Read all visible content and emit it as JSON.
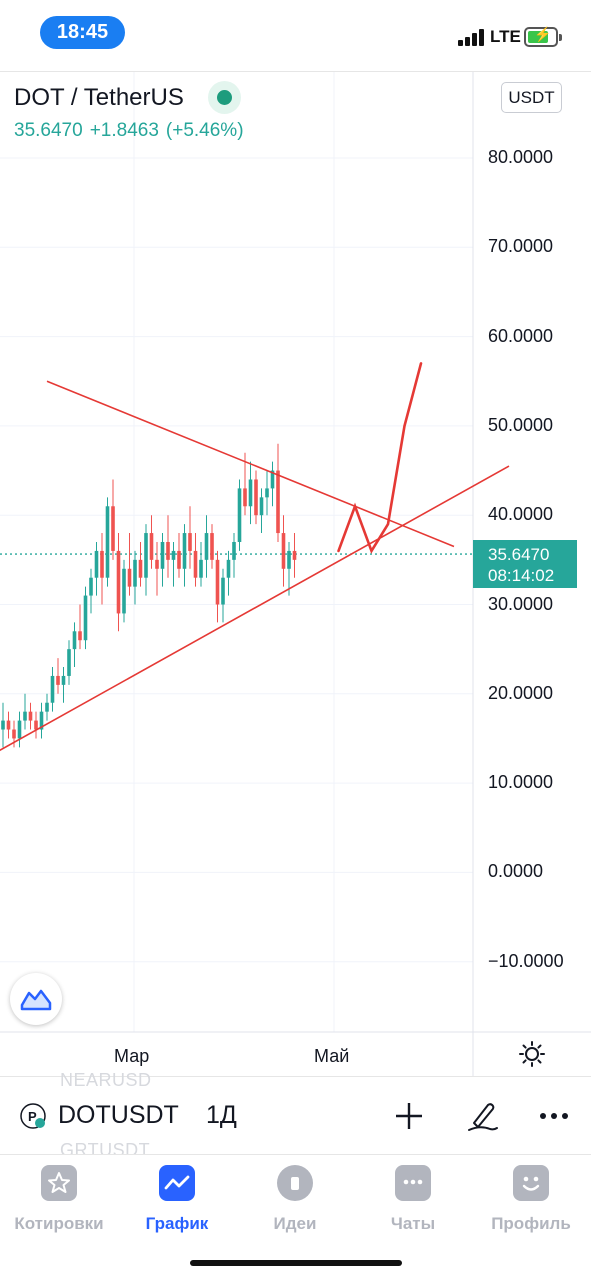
{
  "status_bar": {
    "time": "18:45",
    "network": "LTE",
    "icons": [
      "signal-icon",
      "battery-charging-icon"
    ]
  },
  "header": {
    "symbol_title": "DOT / TetherUS",
    "price": "35.6470",
    "change": "+1.8463",
    "change_percent": "(+5.46%)",
    "currency_button": "USDT",
    "status_indicator": "live-dot-icon"
  },
  "chart": {
    "price_axis_labels": [
      "80.0000",
      "70.0000",
      "60.0000",
      "50.0000",
      "40.0000",
      "30.0000",
      "20.0000",
      "10.0000",
      "0.0000",
      "−10.0000"
    ],
    "current_price_label": "35.6470",
    "countdown_label": "08:14:02",
    "time_axis_labels": [
      "Мар",
      "Май"
    ],
    "colors": {
      "up": "#26a69a",
      "down": "#ef5350",
      "drawing": "#e53935",
      "grid": "#f0f3fa"
    }
  },
  "chart_data": {
    "type": "candlestick",
    "ylim": [
      -14,
      86
    ],
    "current_price": 35.647,
    "candles": [
      [
        16,
        19,
        14,
        17
      ],
      [
        17,
        18,
        15,
        16
      ],
      [
        16,
        17,
        14,
        15
      ],
      [
        15,
        18,
        14,
        17
      ],
      [
        17,
        20,
        16,
        18
      ],
      [
        18,
        19,
        16,
        17
      ],
      [
        17,
        18,
        15,
        16
      ],
      [
        16,
        19,
        15,
        18
      ],
      [
        18,
        20,
        17,
        19
      ],
      [
        19,
        23,
        18,
        22
      ],
      [
        22,
        24,
        20,
        21
      ],
      [
        21,
        23,
        19,
        22
      ],
      [
        22,
        26,
        21,
        25
      ],
      [
        25,
        28,
        23,
        27
      ],
      [
        27,
        30,
        25,
        26
      ],
      [
        26,
        32,
        25,
        31
      ],
      [
        31,
        34,
        29,
        33
      ],
      [
        33,
        37,
        31,
        36
      ],
      [
        36,
        38,
        30,
        33
      ],
      [
        33,
        42,
        32,
        41
      ],
      [
        41,
        44,
        35,
        36
      ],
      [
        36,
        38,
        27,
        29
      ],
      [
        29,
        35,
        28,
        34
      ],
      [
        34,
        38,
        31,
        32
      ],
      [
        32,
        36,
        30,
        35
      ],
      [
        35,
        37,
        32,
        33
      ],
      [
        33,
        39,
        31,
        38
      ],
      [
        38,
        40,
        34,
        35
      ],
      [
        35,
        37,
        31,
        34
      ],
      [
        34,
        38,
        32,
        37
      ],
      [
        37,
        40,
        33,
        35
      ],
      [
        35,
        37,
        32,
        36
      ],
      [
        36,
        38,
        33,
        34
      ],
      [
        34,
        39,
        32,
        38
      ],
      [
        38,
        41,
        34,
        36
      ],
      [
        36,
        38,
        32,
        33
      ],
      [
        33,
        37,
        32,
        35
      ],
      [
        35,
        40,
        33,
        38
      ],
      [
        38,
        39,
        34,
        35
      ],
      [
        35,
        36,
        28,
        30
      ],
      [
        30,
        34,
        28,
        33
      ],
      [
        33,
        36,
        31,
        35
      ],
      [
        35,
        38,
        33,
        37
      ],
      [
        37,
        44,
        36,
        43
      ],
      [
        43,
        47,
        40,
        41
      ],
      [
        41,
        46,
        39,
        44
      ],
      [
        44,
        45,
        39,
        40
      ],
      [
        40,
        43,
        38,
        42
      ],
      [
        42,
        45,
        40,
        43
      ],
      [
        43,
        46,
        41,
        45
      ],
      [
        45,
        48,
        37,
        38
      ],
      [
        38,
        40,
        32,
        34
      ],
      [
        34,
        37,
        31,
        36
      ],
      [
        36,
        38,
        33,
        35
      ]
    ],
    "drawings": [
      {
        "name": "descending-trendline",
        "points": [
          [
            8,
            55
          ],
          [
            82,
            36.5
          ]
        ]
      },
      {
        "name": "ascending-trendline",
        "points": [
          [
            -4,
            12.5
          ],
          [
            92,
            45.5
          ]
        ]
      },
      {
        "name": "projection-curve",
        "points": [
          [
            61,
            36
          ],
          [
            64,
            41
          ],
          [
            67,
            36
          ],
          [
            70,
            39
          ],
          [
            73,
            50
          ],
          [
            76,
            57
          ]
        ]
      }
    ]
  },
  "toolbar": {
    "symbol": "DOTUSDT",
    "interval": "1Д",
    "ghost_symbols": [
      "NEARUSD",
      "GRTUSDT"
    ],
    "actions": [
      "add-icon",
      "draw-icon",
      "more-icon"
    ]
  },
  "tabs": [
    {
      "label": "Котировки",
      "icon": "star-icon",
      "active": false
    },
    {
      "label": "График",
      "icon": "chart-line-icon",
      "active": true
    },
    {
      "label": "Идеи",
      "icon": "lightbulb-icon",
      "active": false
    },
    {
      "label": "Чаты",
      "icon": "chat-icon",
      "active": false
    },
    {
      "label": "Профиль",
      "icon": "smile-icon",
      "active": false
    }
  ]
}
